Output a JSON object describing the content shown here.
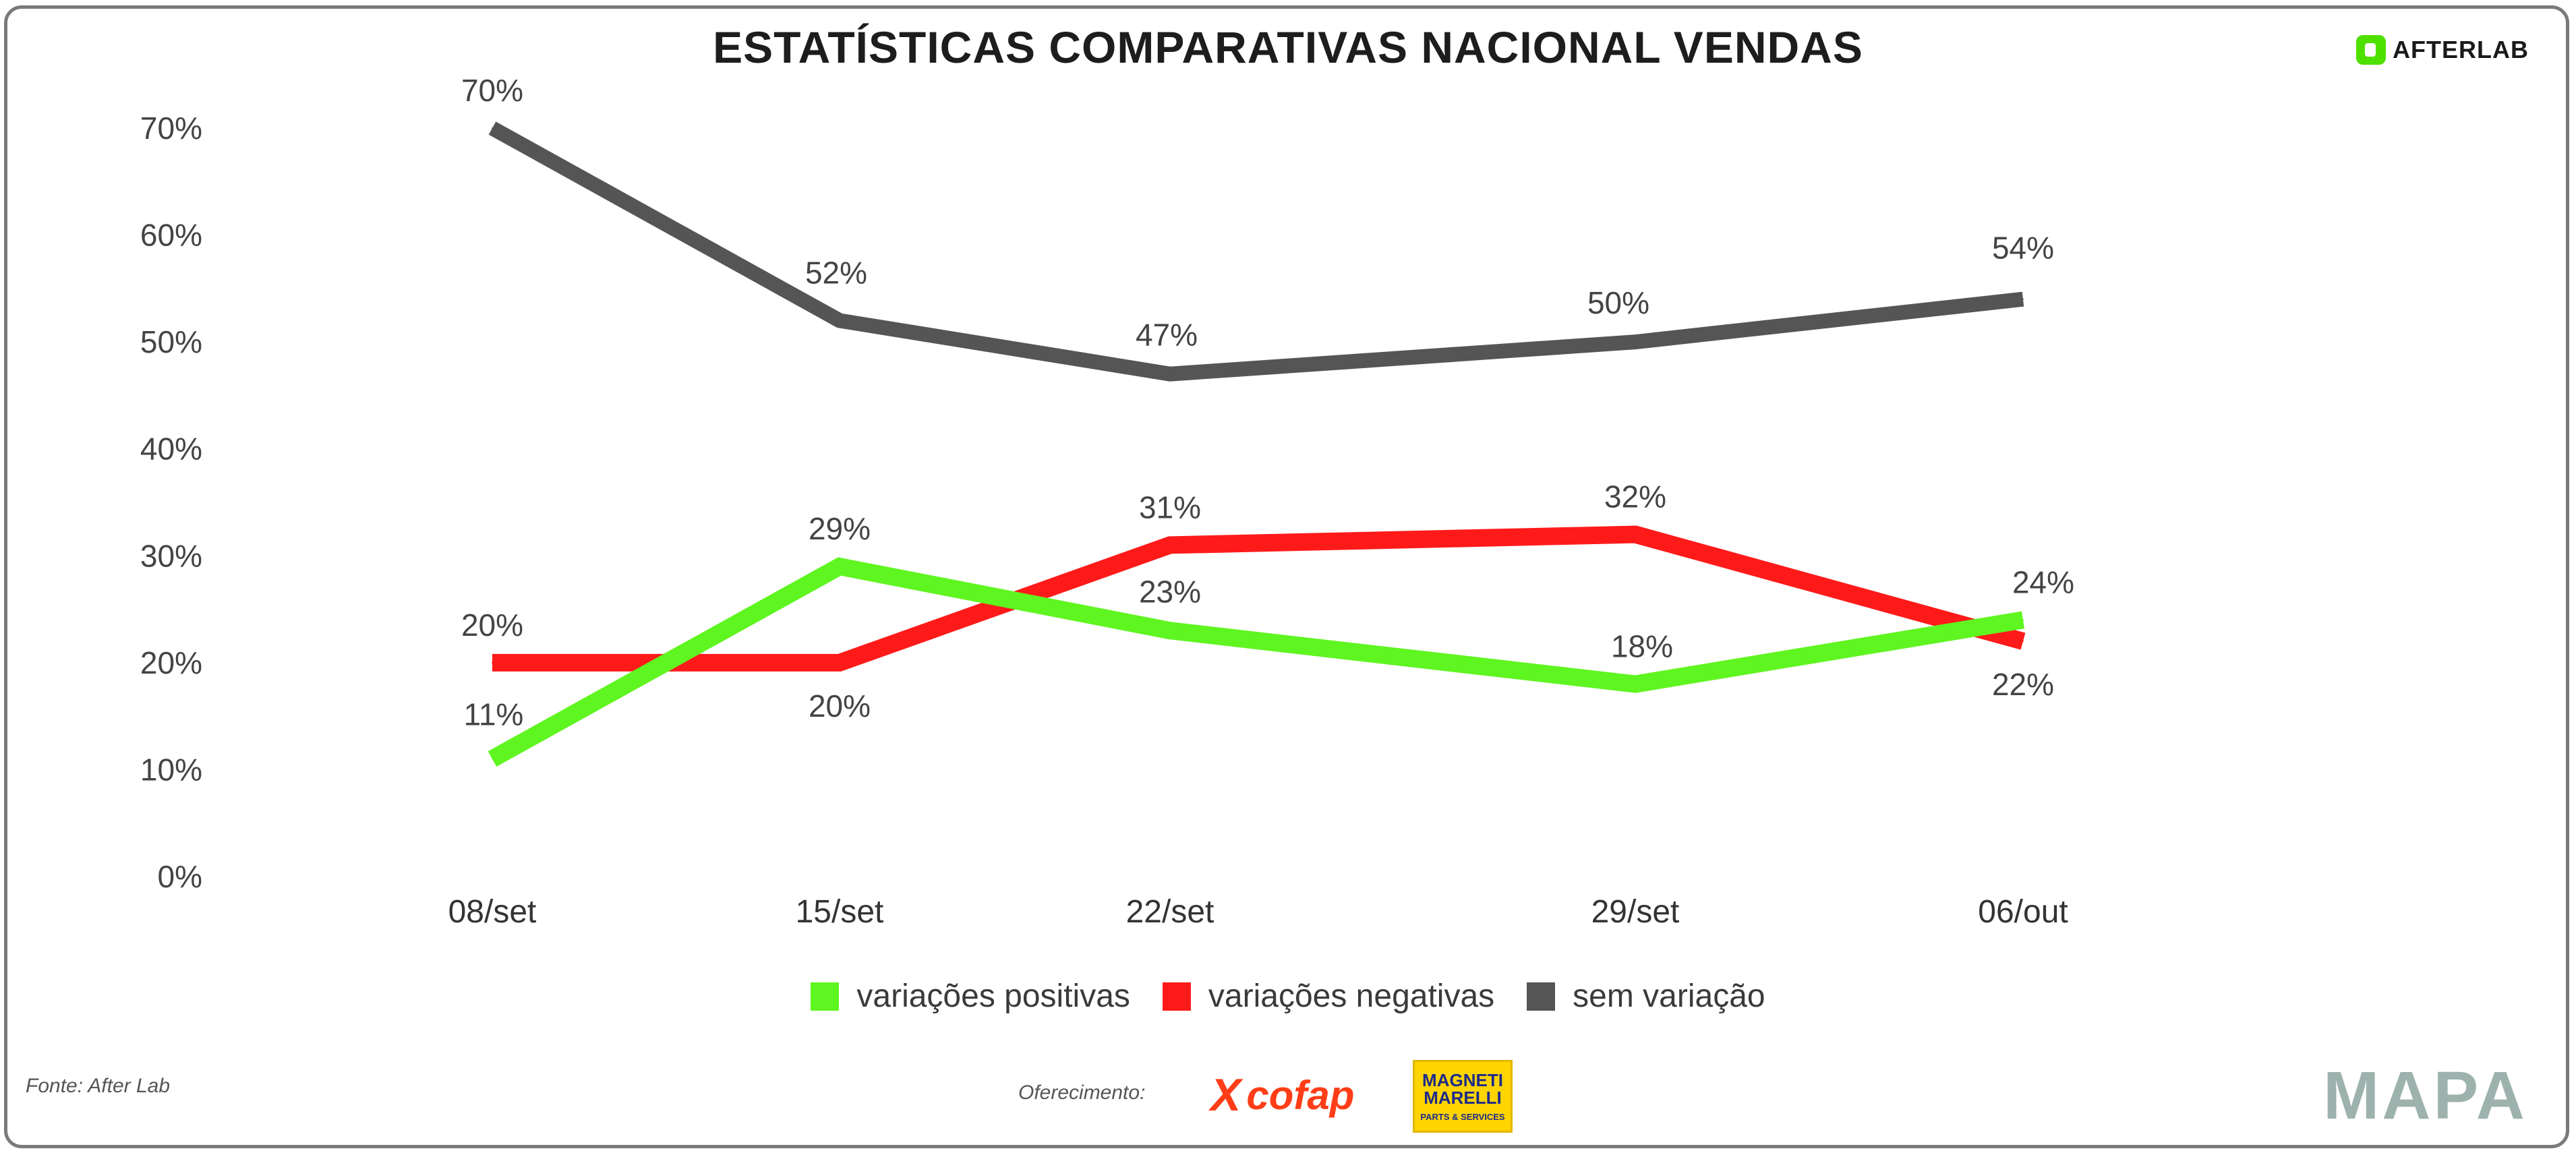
{
  "header": {
    "title": "ESTATÍSTICAS COMPARATIVAS NACIONAL VENDAS",
    "brand_logo": "AFTERLAB"
  },
  "chart_data": {
    "type": "line",
    "title": "ESTATÍSTICAS COMPARATIVAS NACIONAL VENDAS",
    "xlabel": "",
    "ylabel": "",
    "ylim": [
      0,
      70
    ],
    "y_ticks": [
      "0%",
      "10%",
      "20%",
      "30%",
      "40%",
      "50%",
      "60%",
      "70%"
    ],
    "y_tick_values": [
      0,
      10,
      20,
      30,
      40,
      50,
      60,
      70
    ],
    "categories": [
      "08/set",
      "15/set",
      "22/set",
      "29/set",
      "06/out"
    ],
    "grid": false,
    "legend_position": "bottom",
    "series": [
      {
        "name": "variações positivas",
        "color": "#5ff520",
        "values": [
          11,
          29,
          23,
          18,
          24
        ],
        "labels": [
          "11%",
          "29%",
          "23%",
          "18%",
          "24%"
        ]
      },
      {
        "name": "variações negativas",
        "color": "#ff1a1a",
        "values": [
          20,
          20,
          31,
          32,
          22
        ],
        "labels": [
          "20%",
          "20%",
          "31%",
          "32%",
          "22%"
        ]
      },
      {
        "name": "sem variação",
        "color": "#555555",
        "values": [
          70,
          52,
          47,
          50,
          54
        ],
        "labels": [
          "70%",
          "52%",
          "47%",
          "50%",
          "54%"
        ]
      }
    ]
  },
  "footer": {
    "source": "Fonte: After Lab",
    "sponsorship": "Oferecimento:",
    "sponsor_1": "cofap",
    "sponsor_1_mark": "X",
    "sponsor_2_line1": "MAGNETI",
    "sponsor_2_line2": "MARELLI",
    "sponsor_2_sub": "PARTS & SERVICES",
    "partner_logo": "MAPA"
  }
}
